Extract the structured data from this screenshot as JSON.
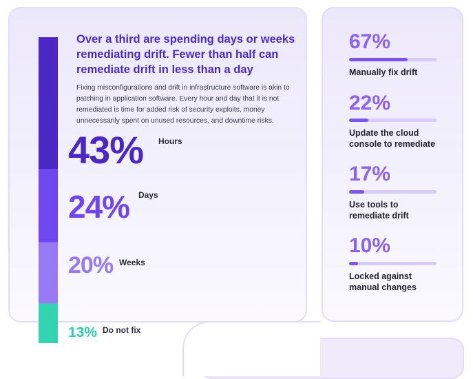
{
  "chart_data": [
    {
      "type": "bar",
      "stacked": true,
      "orientation": "vertical",
      "title": "Over a third are spending days or weeks remediating drift. Fewer than half can remediate drift in less than a day",
      "description": "Fixing misconfigurations and drift in infrastructure software is akin to patching in application software. Every hour and day that it is not remediated is time for added risk of security exploits, money unnecessarily spent on unused resources, and downtime risks.",
      "categories": [
        "Hours",
        "Days",
        "Weeks",
        "Do not fix"
      ],
      "values": [
        43,
        24,
        20,
        13
      ],
      "value_labels": [
        "43%",
        "24%",
        "20%",
        "13%"
      ],
      "colors": [
        "#4b27c5",
        "#6f47f0",
        "#9679f3",
        "#34d3b1"
      ]
    },
    {
      "type": "bar",
      "orientation": "horizontal",
      "categories": [
        "Manually fix drift",
        "Update the cloud console to remediate",
        "Use tools to remediate drift",
        "Locked against manual changes"
      ],
      "values": [
        67,
        22,
        17,
        10
      ],
      "value_labels": [
        "67%",
        "22%",
        "17%",
        "10%"
      ],
      "xlim": [
        0,
        100
      ],
      "colors": {
        "fill": "#7b55ee",
        "track": "#d7ccfa",
        "value_text": "#8a62f4"
      }
    }
  ]
}
